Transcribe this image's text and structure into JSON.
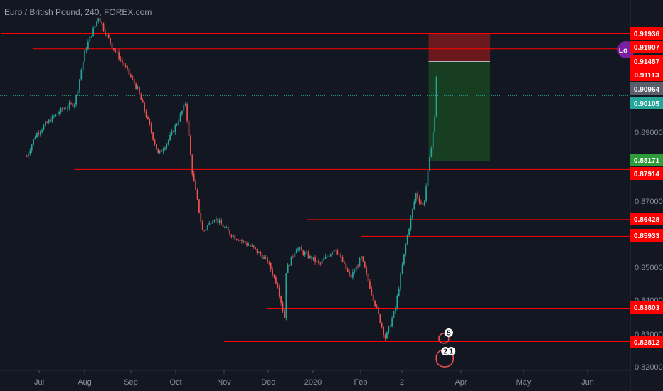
{
  "header": {
    "title": "Euro / British Pound, 240, FOREX.com"
  },
  "colors": {
    "background": "#131722",
    "candle_up": "#26a69a",
    "candle_down": "#ef5350",
    "level_line": "#ff0000",
    "zone_fill": "#7b1fa2",
    "target_fill": "#1b5e20",
    "stop_fill": "#b71c1c",
    "current_price": "#4d4d4d",
    "teal_price": "#26a69a",
    "green_price": "#43a047"
  },
  "chart_data": {
    "type": "candlestick",
    "title": "Euro / British Pound, 240, FOREX.com",
    "x_ticks": [
      "Jul",
      "Aug",
      "Sep",
      "Oct",
      "Nov",
      "Dec",
      "2020",
      "Feb",
      "2",
      "Apr",
      "May",
      "Jun"
    ],
    "y_ticks": [
      "0.89000",
      "0.87000",
      "0.85000",
      "0.84000",
      "0.83000",
      "0.82000"
    ],
    "ylim": [
      0.82,
      0.923
    ],
    "price_path": [
      [
        "Jun 20",
        0.883
      ],
      [
        "Jun 27",
        0.8895
      ],
      [
        "Jul 05",
        0.8925
      ],
      [
        "Jul 15",
        0.8965
      ],
      [
        "Jul 25",
        0.899
      ],
      [
        "Aug 01",
        0.9145
      ],
      [
        "Aug 05",
        0.919
      ],
      [
        "Aug 10",
        0.9245
      ],
      [
        "Aug 14",
        0.92
      ],
      [
        "Aug 20",
        0.915
      ],
      [
        "Aug 27",
        0.91
      ],
      [
        "Sep 05",
        0.903
      ],
      [
        "Sep 12",
        0.8935
      ],
      [
        "Sep 19",
        0.8835
      ],
      [
        "Sep 26",
        0.888
      ],
      [
        "Oct 03",
        0.8945
      ],
      [
        "Oct 07",
        0.899
      ],
      [
        "Oct 11",
        0.879
      ],
      [
        "Oct 18",
        0.8605
      ],
      [
        "Oct 25",
        0.865
      ],
      [
        "Nov 05",
        0.86
      ],
      [
        "Nov 20",
        0.856
      ],
      [
        "Nov 30",
        0.852
      ],
      [
        "Dec 07",
        0.845
      ],
      [
        "Dec 12",
        0.835
      ],
      [
        "Dec 13",
        0.849
      ],
      [
        "Dec 20",
        0.856
      ],
      [
        "Jan 05",
        0.851
      ],
      [
        "Jan 15",
        0.856
      ],
      [
        "Jan 25",
        0.847
      ],
      [
        "Feb 01",
        0.853
      ],
      [
        "Feb 08",
        0.843
      ],
      [
        "Feb 18",
        0.829
      ],
      [
        "Feb 25",
        0.838
      ],
      [
        "Mar 03",
        0.858
      ],
      [
        "Mar 08",
        0.872
      ],
      [
        "Mar 12",
        0.868
      ],
      [
        "Mar 15",
        0.881
      ],
      [
        "Mar 18",
        0.895
      ],
      [
        "Mar 19",
        0.9095
      ]
    ],
    "levels": [
      0.91936,
      0.91487,
      0.87914,
      0.86428,
      0.85933,
      0.83803,
      0.82812
    ],
    "price_labels": [
      {
        "value": 0.91936,
        "text": "0.91936",
        "kind": "red"
      },
      {
        "value": 0.91907,
        "text": "0.91907",
        "kind": "red"
      },
      {
        "value": 0.91487,
        "text": "0.91487",
        "kind": "red"
      },
      {
        "value": 0.91113,
        "text": "0.91113",
        "kind": "red"
      },
      {
        "value": 0.90964,
        "text": "0.90964",
        "kind": "current"
      },
      {
        "value": 0.90105,
        "text": "0.90105",
        "kind": "teal"
      },
      {
        "value": 0.88171,
        "text": "0.88171",
        "kind": "green"
      },
      {
        "value": 0.87914,
        "text": "0.87914",
        "kind": "red"
      },
      {
        "value": 0.86428,
        "text": "0.86428",
        "kind": "red"
      },
      {
        "value": 0.85933,
        "text": "0.85933",
        "kind": "red"
      },
      {
        "value": 0.83803,
        "text": "0.83803",
        "kind": "red"
      },
      {
        "value": 0.82812,
        "text": "0.82812",
        "kind": "red"
      }
    ],
    "supply_zone": {
      "top": 0.91907,
      "bottom": 0.91487
    },
    "short_position": {
      "entry": 0.91113,
      "stop": 0.91936,
      "target": 0.88171
    },
    "dotted_price_line": 0.90105,
    "event_badges": [
      "5",
      "2",
      "1"
    ],
    "zone_tag": "Lo"
  }
}
